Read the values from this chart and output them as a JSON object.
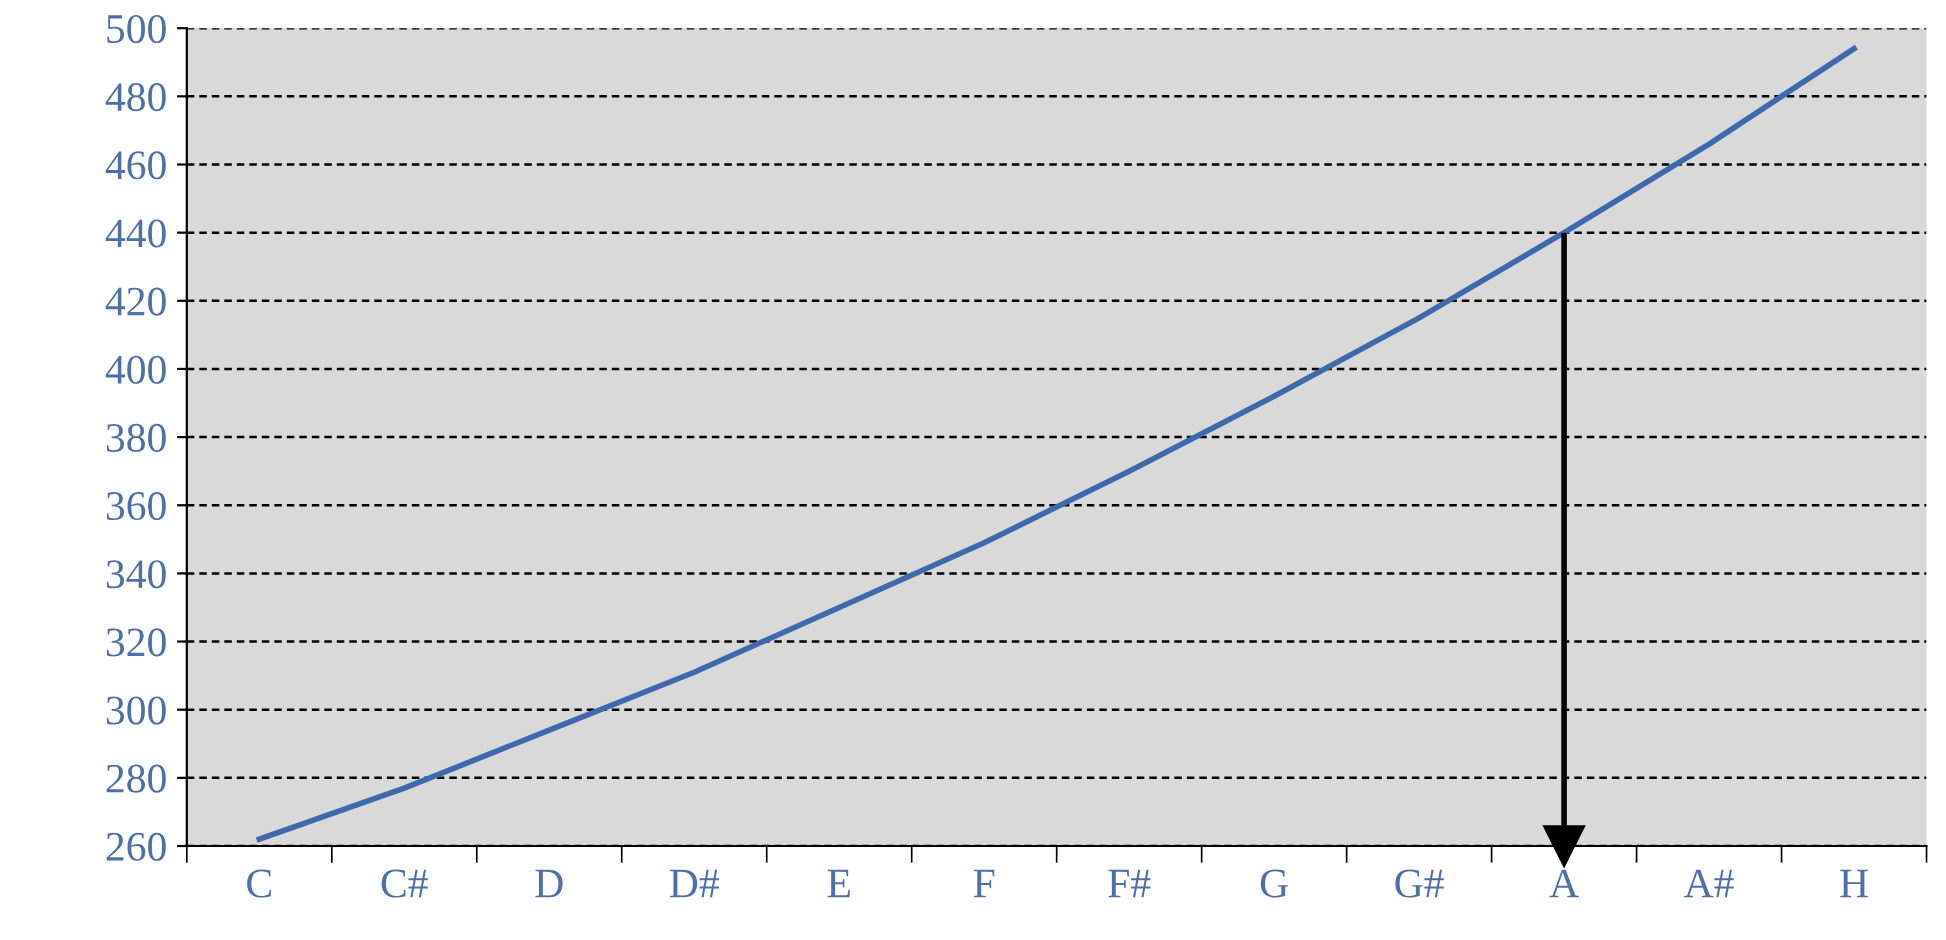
{
  "chart_data": {
    "type": "line",
    "categories": [
      "C",
      "C#",
      "D",
      "D#",
      "E",
      "F",
      "F#",
      "G",
      "G#",
      "A",
      "A#",
      "H"
    ],
    "series": [
      {
        "color": "#3d6aad",
        "values": [
          262,
          277,
          294,
          311,
          330,
          349,
          370,
          392,
          415,
          440,
          466,
          494
        ]
      }
    ],
    "ylim": [
      260,
      500
    ],
    "yticks": [
      260,
      280,
      300,
      320,
      340,
      360,
      380,
      400,
      420,
      440,
      460,
      480,
      500
    ],
    "grid": "y",
    "marker": "none",
    "line_style": "solid",
    "ref_lines": [
      {
        "axis": "x",
        "value": "A",
        "color": "#000000"
      }
    ]
  }
}
